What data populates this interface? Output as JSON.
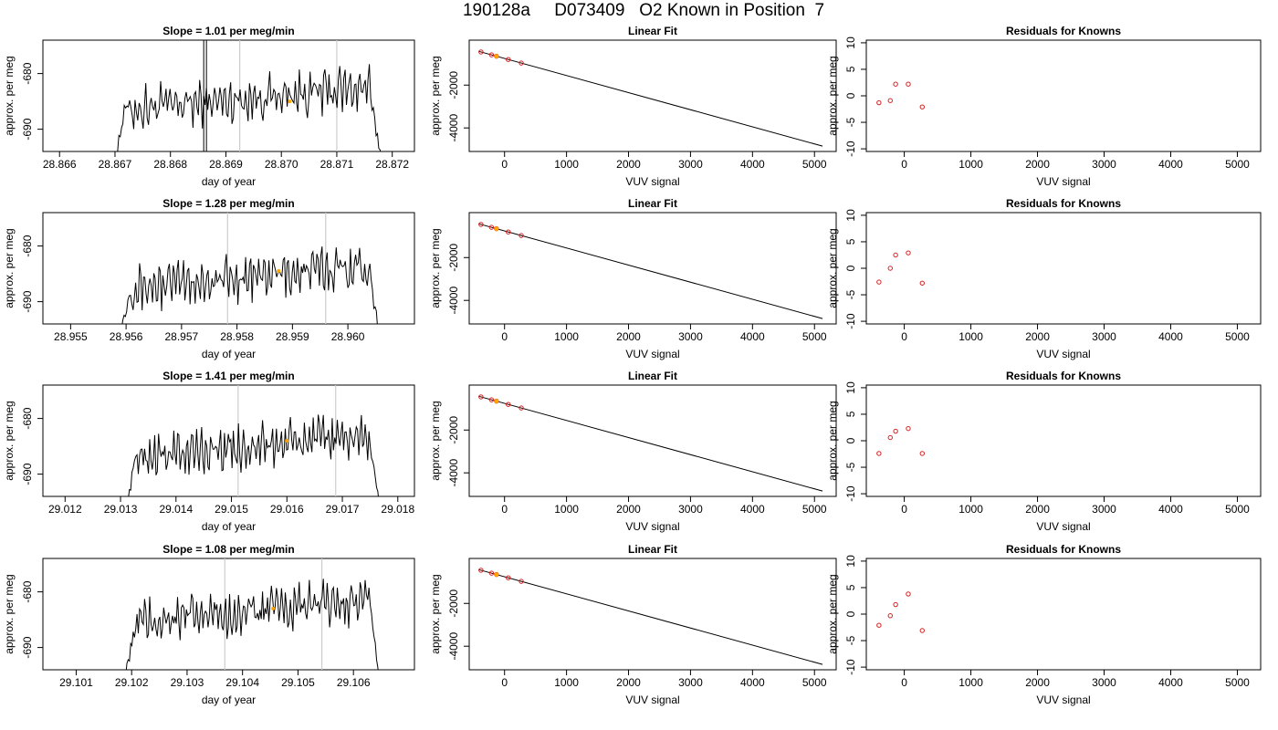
{
  "page_title": "190128a     D073409   O2 Known in Position  7",
  "colors": {
    "trace": "#000000",
    "marker": "#ffa500",
    "residual": "#d62020",
    "refline": "#cccccc"
  },
  "chart_data": [
    {
      "row": 1,
      "type": "line",
      "title": "Slope =  1.01  per meg/min",
      "xlabel": "day of year",
      "ylabel": "approx. per meg",
      "xlim": [
        28.8657,
        28.8724
      ],
      "ylim": [
        -694,
        -674
      ],
      "xticks": [
        "28.866",
        "28.867",
        "28.868",
        "28.869",
        "28.870",
        "28.871",
        "28.872"
      ],
      "yticks": [
        "-680",
        "-690"
      ],
      "start": 28.8669,
      "end": 28.872,
      "rise": 28.8672,
      "fall": 28.8716,
      "plateau": -684.5,
      "spike_at": 28.8686,
      "vlines": [
        28.86925,
        28.871
      ],
      "marker": {
        "x": 28.87015,
        "y": -685
      }
    },
    {
      "row": 2,
      "type": "line",
      "title": "Slope =  1.28  per meg/min",
      "xlabel": "day of year",
      "ylabel": "approx. per meg",
      "xlim": [
        28.9545,
        28.9612
      ],
      "ylim": [
        -694,
        -674
      ],
      "xticks": [
        "28.955",
        "28.956",
        "28.957",
        "28.958",
        "28.959",
        "28.960"
      ],
      "yticks": [
        "-680",
        "-690"
      ],
      "start": 28.9558,
      "end": 28.9607,
      "rise": 28.9561,
      "fall": 28.9604,
      "plateau": -685.5,
      "spike_at": null,
      "vlines": [
        28.95783,
        28.9596
      ],
      "marker": {
        "x": 28.95875,
        "y": -684.5
      }
    },
    {
      "row": 3,
      "type": "line",
      "title": "Slope =  1.41  per meg/min",
      "xlabel": "day of year",
      "ylabel": "approx. per meg",
      "xlim": [
        29.0116,
        29.0183
      ],
      "ylim": [
        -694,
        -674
      ],
      "xticks": [
        "29.012",
        "29.013",
        "29.014",
        "29.015",
        "29.016",
        "29.017",
        "29.018"
      ],
      "yticks": [
        "-680",
        "-690"
      ],
      "start": 29.013,
      "end": 29.0178,
      "rise": 29.0133,
      "fall": 29.0175,
      "plateau": -685,
      "spike_at": null,
      "vlines": [
        29.01512,
        29.01688
      ],
      "marker": {
        "x": 29.016,
        "y": -684
      }
    },
    {
      "row": 4,
      "type": "line",
      "title": "Slope =  1.08  per meg/min",
      "xlabel": "day of year",
      "ylabel": "approx. per meg",
      "xlim": [
        29.1004,
        29.1071
      ],
      "ylim": [
        -694,
        -674
      ],
      "xticks": [
        "29.101",
        "29.102",
        "29.103",
        "29.104",
        "29.105",
        "29.106"
      ],
      "yticks": [
        "-680",
        "-690"
      ],
      "start": 29.1018,
      "end": 29.1066,
      "rise": 29.1021,
      "fall": 29.1063,
      "plateau": -683.5,
      "spike_at": null,
      "vlines": [
        29.10368,
        29.10543
      ],
      "marker": {
        "x": 29.10455,
        "y": -683
      }
    }
  ],
  "linear_fit": {
    "title": "Linear Fit",
    "xlabel": "VUV signal",
    "ylabel": "approx. per meg",
    "xlim": [
      -570,
      5350
    ],
    "ylim": [
      -5100,
      100
    ],
    "xticks": [
      "0",
      "1000",
      "2000",
      "3000",
      "4000",
      "5000"
    ],
    "yticks": [
      "-2000",
      "-4000"
    ],
    "line": {
      "x0": -420,
      "y0": -420,
      "x1": 5130,
      "y1": -4850
    },
    "points": [
      -380,
      -210,
      -130,
      60,
      270
    ],
    "highlight_index": 2
  },
  "residuals": {
    "title": "Residuals for Knowns",
    "xlabel": "VUV signal",
    "ylabel": "approx. per meg",
    "xlim": [
      -570,
      5350
    ],
    "ylim": [
      -10.5,
      10.5
    ],
    "xticks": [
      "0",
      "1000",
      "2000",
      "3000",
      "4000",
      "5000"
    ],
    "yticks": [
      "-10",
      "-5",
      "0",
      "5",
      "10"
    ],
    "points_x": [
      -380,
      -210,
      -130,
      60,
      270
    ],
    "rows": [
      [
        -1.3,
        -0.9,
        2.2,
        2.2,
        -2.1
      ],
      [
        -2.6,
        0.0,
        2.5,
        2.9,
        -2.8
      ],
      [
        -2.4,
        0.6,
        1.8,
        2.3,
        -2.4
      ],
      [
        -2.1,
        -0.3,
        1.8,
        3.8,
        -3.1
      ]
    ]
  }
}
